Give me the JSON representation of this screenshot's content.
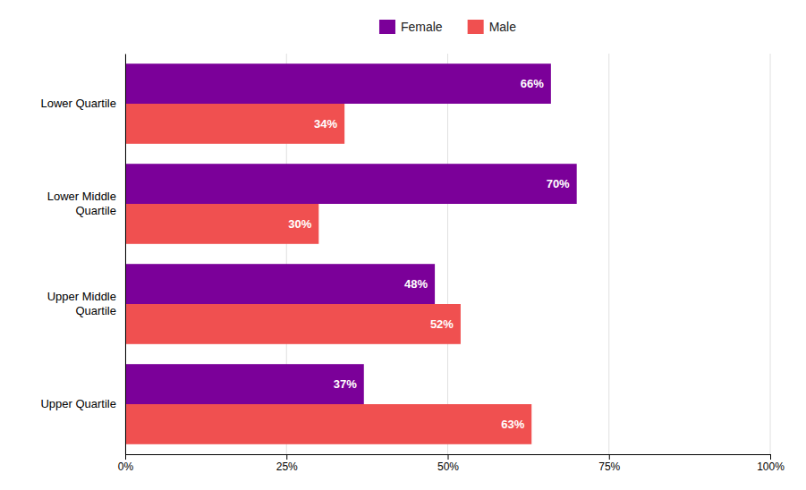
{
  "chart_data": {
    "type": "bar",
    "orientation": "horizontal",
    "categories": [
      "Lower Quartile",
      "Lower Middle\nQuartile",
      "Upper Middle\nQuartile",
      "Upper Quartile"
    ],
    "series": [
      {
        "name": "Female",
        "color": "#7B0099",
        "values": [
          66,
          70,
          48,
          37
        ],
        "value_labels": [
          "66%",
          "70%",
          "48%",
          "37%"
        ]
      },
      {
        "name": "Male",
        "color": "#F05050",
        "values": [
          34,
          30,
          52,
          63
        ],
        "value_labels": [
          "34%",
          "30%",
          "52%",
          "63%"
        ]
      }
    ],
    "xlim": [
      0,
      100
    ],
    "xticks": [
      {
        "value": 0,
        "label": "0%"
      },
      {
        "value": 25,
        "label": "25%"
      },
      {
        "value": 50,
        "label": "50%"
      },
      {
        "value": 75,
        "label": "75%"
      },
      {
        "value": 100,
        "label": "100%"
      }
    ],
    "grid": true,
    "legend": "top",
    "data_labels": true
  }
}
